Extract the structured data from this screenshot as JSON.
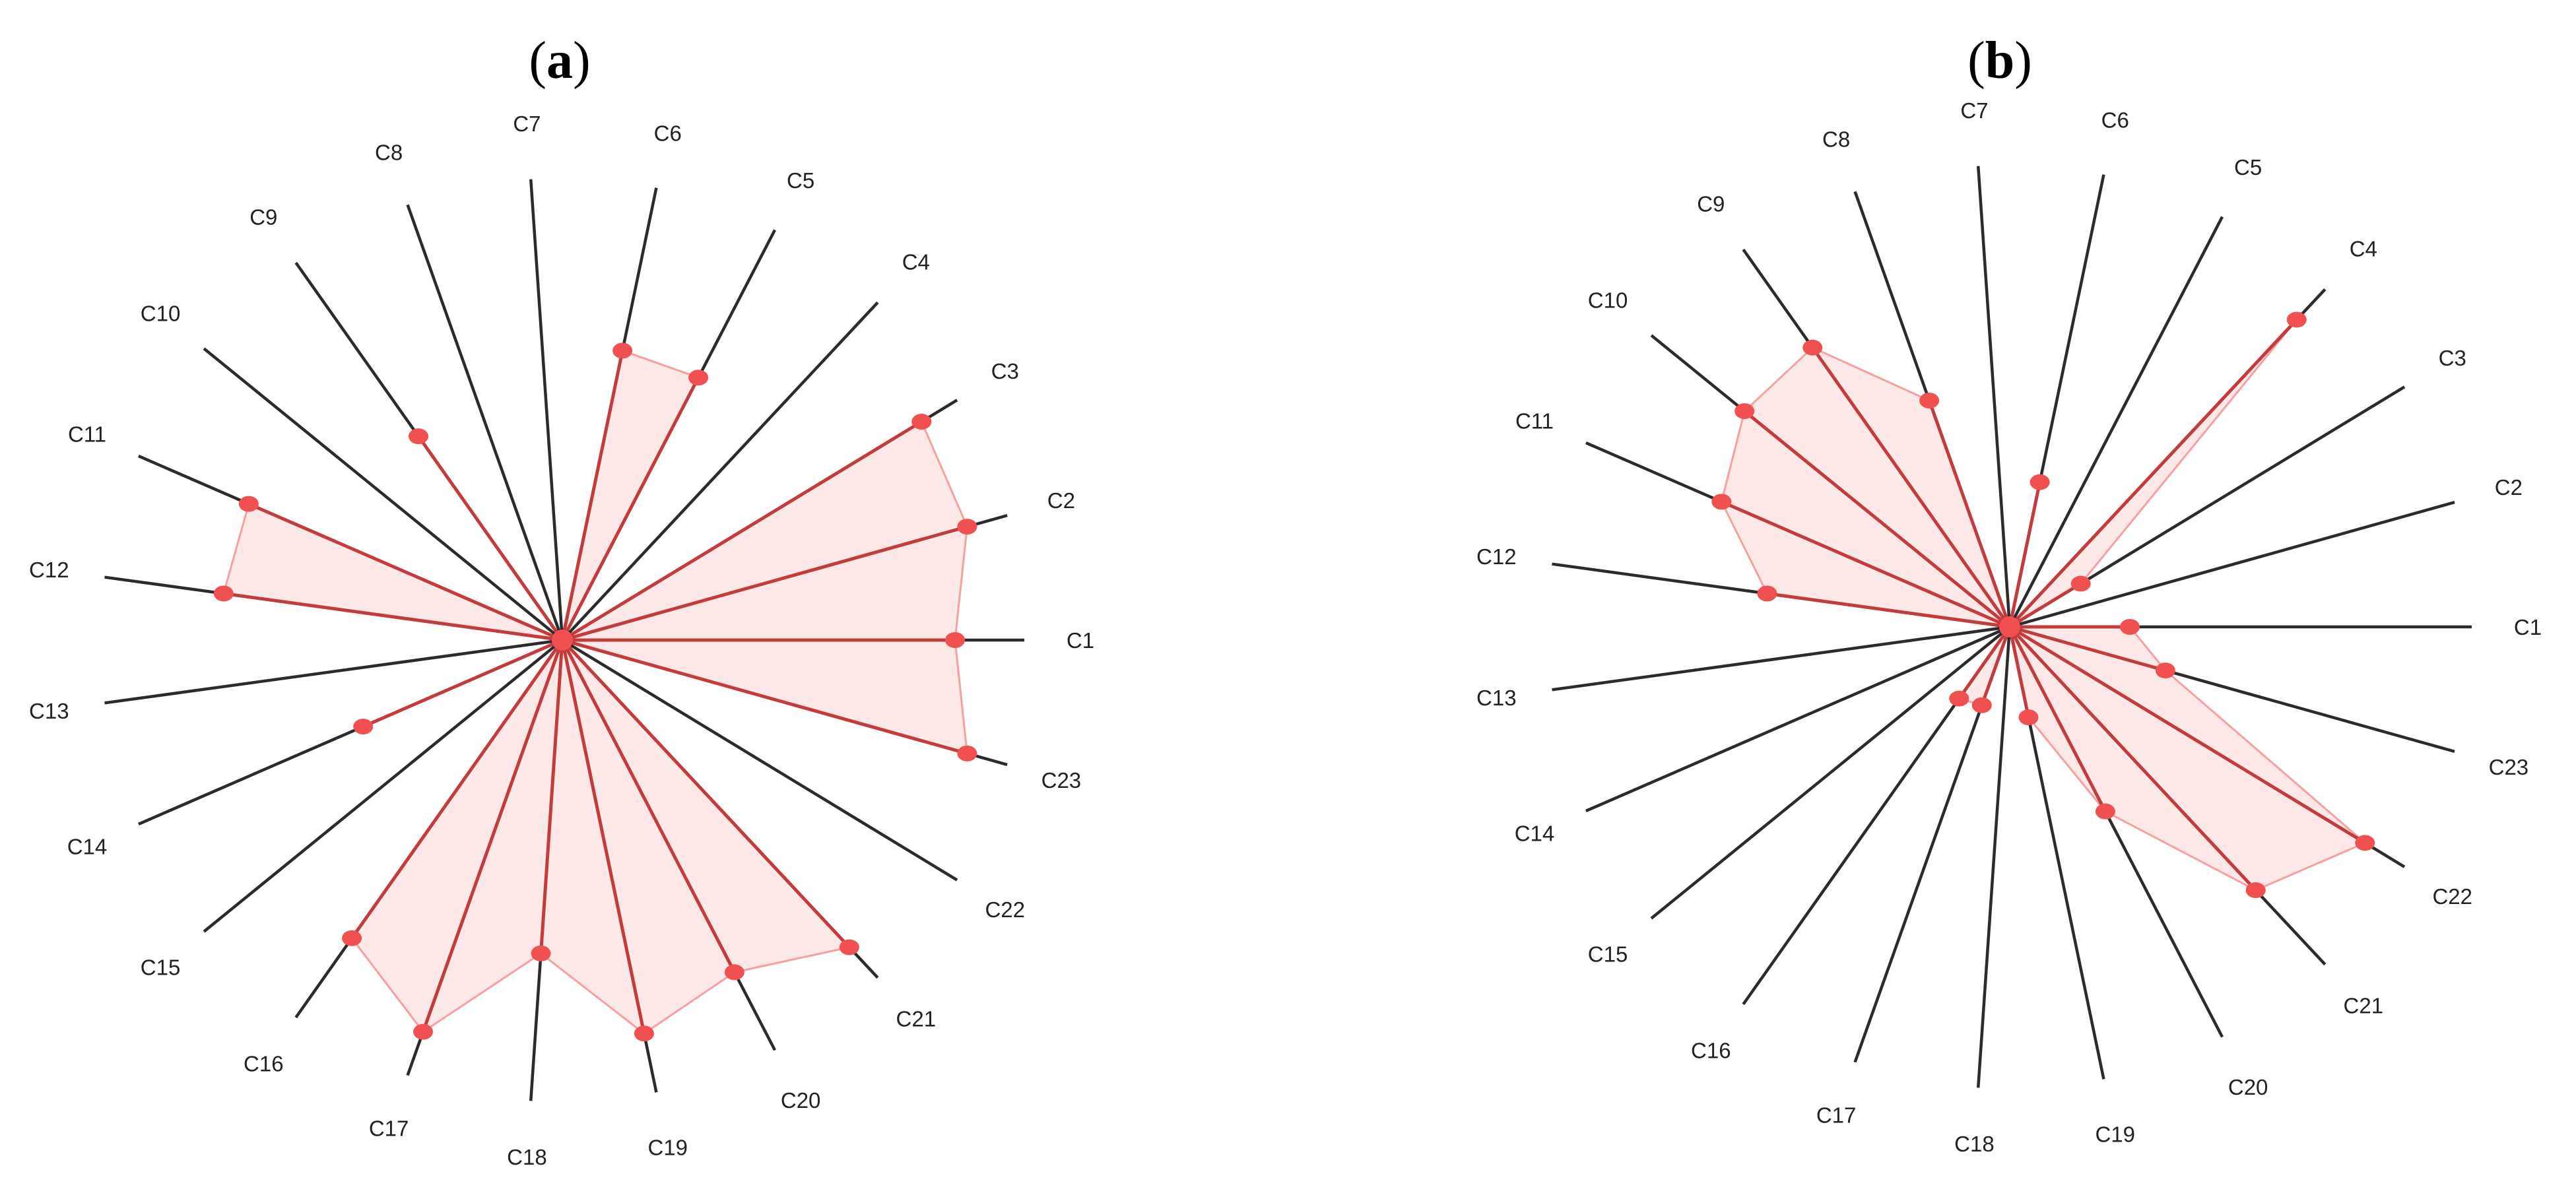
{
  "colors": {
    "marker": "#f05050",
    "area_fill": "#fde8e8",
    "area_stroke": "#f6a0a0",
    "spoke": "#c43b3b",
    "axis": "#2b2b2b"
  },
  "chart_data": [
    {
      "type": "radar",
      "panel": "(a)",
      "panel_letter": "a",
      "axes": [
        "C1",
        "C2",
        "C3",
        "C4",
        "C5",
        "C6",
        "C7",
        "C8",
        "C9",
        "C10",
        "C11",
        "C12",
        "C13",
        "C14",
        "C15",
        "C16",
        "C17",
        "C18",
        "C19",
        "C20",
        "C21",
        "C22",
        "C23"
      ],
      "values": [
        0.85,
        0.91,
        0.91,
        0.0,
        0.64,
        0.64,
        0.0,
        0.0,
        0.54,
        0.0,
        0.74,
        0.74,
        0.0,
        0.47,
        0.0,
        0.79,
        0.9,
        0.68,
        0.87,
        0.81,
        0.91,
        0.0,
        0.91
      ],
      "grid": false,
      "legend": "none"
    },
    {
      "type": "radar",
      "panel": "(b)",
      "panel_letter": "b",
      "axes": [
        "C1",
        "C2",
        "C3",
        "C4",
        "C5",
        "C6",
        "C7",
        "C8",
        "C9",
        "C10",
        "C11",
        "C12",
        "C13",
        "C14",
        "C15",
        "C16",
        "C17",
        "C18",
        "C19",
        "C20",
        "C21",
        "C22",
        "C23"
      ],
      "values": [
        0.26,
        0.0,
        0.18,
        0.91,
        0.0,
        0.32,
        0.0,
        0.52,
        0.74,
        0.74,
        0.68,
        0.53,
        0.0,
        0.0,
        0.0,
        0.19,
        0.18,
        0.0,
        0.2,
        0.45,
        0.78,
        0.9,
        0.35
      ],
      "grid": false,
      "legend": "none"
    }
  ]
}
